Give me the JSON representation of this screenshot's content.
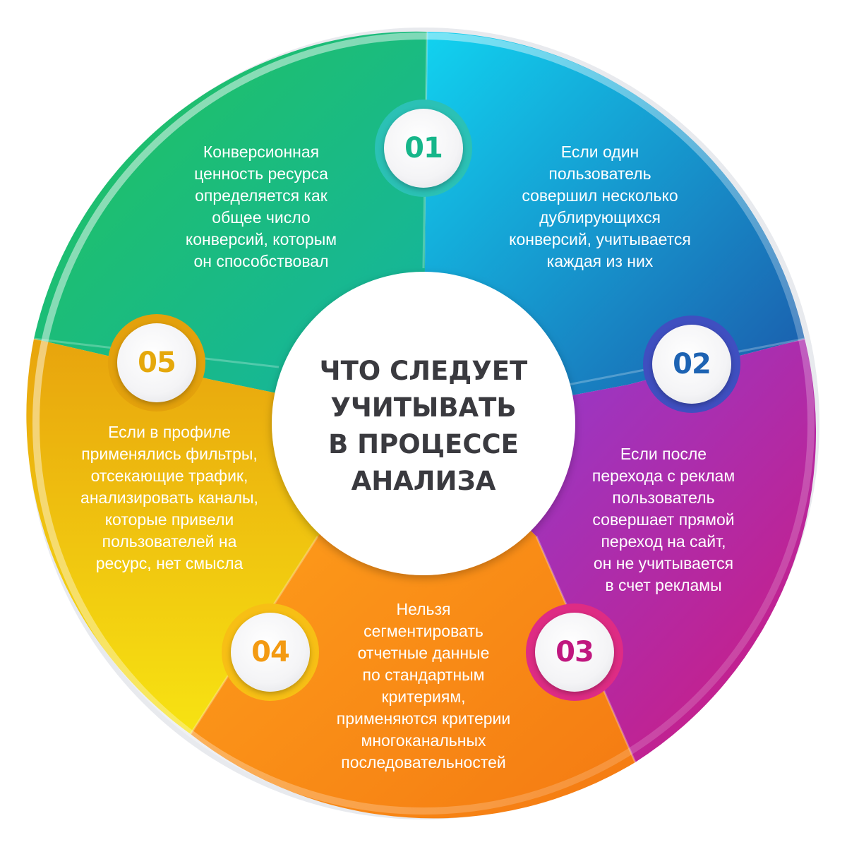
{
  "center": {
    "title_lines": [
      "ЧТО СЛЕДУЕТ",
      "УЧИТЫВАТЬ",
      "В ПРОЦЕССЕ",
      "АНАЛИЗА"
    ]
  },
  "segments": [
    {
      "number": "01",
      "color": "#1aa3c9",
      "text_lines": [
        "Если один",
        "пользователь",
        "совершил несколько",
        "дублирующихся",
        "конверсий, учитывается",
        "каждая из них"
      ]
    },
    {
      "number": "02",
      "color": "#1d63b3",
      "text_lines": [
        "Если после",
        "перехода с реклам",
        "пользователь",
        "совершает прямой",
        "переход на сайт,",
        "он не учитывается",
        "в счет рекламы"
      ]
    },
    {
      "number": "03",
      "color": "#c0177f",
      "text_lines": [
        "Нельзя",
        "сегментировать",
        "отчетные данные",
        "по стандартным",
        "критериям,",
        "применяются критерии",
        "многоканальных",
        "последовательностей"
      ]
    },
    {
      "number": "04",
      "color": "#f39a12",
      "text_lines": [
        "Если в профиле",
        "применялись фильтры,",
        "отсекающие трафик,",
        "анализировать каналы,",
        "которые привели",
        "пользователей на",
        "ресурс, нет смысла"
      ]
    },
    {
      "number": "05",
      "color": "#e5a80c",
      "text_lines": [
        "Конверсионная",
        "ценность ресурса",
        "определяется как",
        "общее число",
        "конверсий, которым",
        "он способствовал"
      ]
    }
  ]
}
